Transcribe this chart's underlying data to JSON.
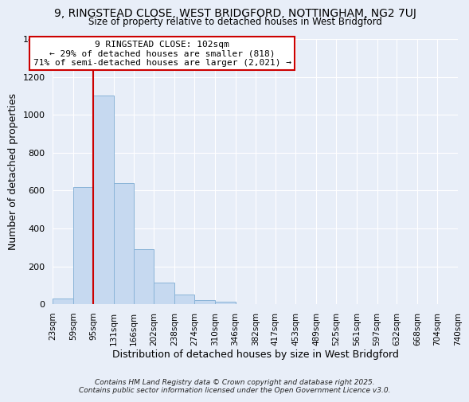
{
  "title": "9, RINGSTEAD CLOSE, WEST BRIDGFORD, NOTTINGHAM, NG2 7UJ",
  "subtitle": "Size of property relative to detached houses in West Bridgford",
  "xlabel": "Distribution of detached houses by size in West Bridgford",
  "ylabel": "Number of detached properties",
  "bin_edges": [
    23,
    59,
    95,
    131,
    166,
    202,
    238,
    274,
    310,
    346,
    382,
    417,
    453,
    489,
    525,
    561,
    597,
    632,
    668,
    704,
    740
  ],
  "bar_heights": [
    30,
    620,
    1100,
    640,
    290,
    115,
    50,
    20,
    15,
    0,
    0,
    0,
    0,
    0,
    0,
    0,
    0,
    0,
    0,
    0
  ],
  "bar_color": "#c6d9f0",
  "bar_edge_color": "#8ab4d8",
  "vline_x": 95,
  "annotation_title": "9 RINGSTEAD CLOSE: 102sqm",
  "annotation_line1": "← 29% of detached houses are smaller (818)",
  "annotation_line2": "71% of semi-detached houses are larger (2,021) →",
  "box_color": "#ffffff",
  "box_edge_color": "#cc0000",
  "vline_color": "#cc0000",
  "ylim": [
    0,
    1400
  ],
  "yticks": [
    0,
    200,
    400,
    600,
    800,
    1000,
    1200,
    1400
  ],
  "background_color": "#e8eef8",
  "footer_line1": "Contains HM Land Registry data © Crown copyright and database right 2025.",
  "footer_line2": "Contains public sector information licensed under the Open Government Licence v3.0."
}
